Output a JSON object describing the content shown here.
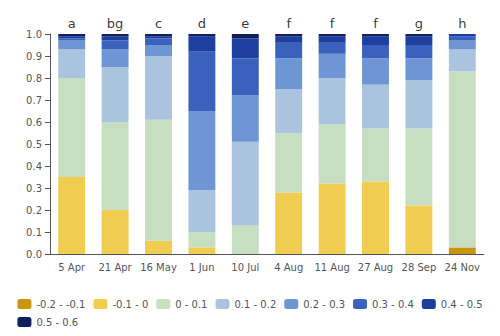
{
  "chart_data": {
    "type": "bar",
    "stacked": true,
    "categories": [
      "5 Apr",
      "21 Apr",
      "16 May",
      "1 Jun",
      "10 Jul",
      "4 Aug",
      "11 Aug",
      "27 Aug",
      "28 Sep",
      "24 Nov"
    ],
    "annotations": [
      "a",
      "bg",
      "c",
      "d",
      "e",
      "f",
      "f",
      "f",
      "g",
      "h"
    ],
    "series": [
      {
        "name": "-0.2 - -0.1",
        "color": "#c8960c",
        "values": [
          0.0,
          0.0,
          0.0,
          0.0,
          0.0,
          0.0,
          0.0,
          0.0,
          0.0,
          0.03
        ]
      },
      {
        "name": "-0.1 - 0",
        "color": "#f0cc50",
        "values": [
          0.35,
          0.2,
          0.06,
          0.03,
          0.0,
          0.28,
          0.32,
          0.33,
          0.22,
          0.0
        ]
      },
      {
        "name": "0 - 0.1",
        "color": "#c5dfc0",
        "values": [
          0.45,
          0.4,
          0.55,
          0.07,
          0.13,
          0.27,
          0.27,
          0.24,
          0.35,
          0.8
        ]
      },
      {
        "name": "0.1 - 0.2",
        "color": "#aac4e0",
        "values": [
          0.13,
          0.25,
          0.29,
          0.19,
          0.38,
          0.2,
          0.21,
          0.2,
          0.22,
          0.1
        ]
      },
      {
        "name": "0.2 - 0.3",
        "color": "#6e96d4",
        "values": [
          0.04,
          0.08,
          0.05,
          0.36,
          0.21,
          0.14,
          0.11,
          0.12,
          0.1,
          0.04
        ]
      },
      {
        "name": "0.3 - 0.4",
        "color": "#3a62bc",
        "values": [
          0.01,
          0.04,
          0.03,
          0.27,
          0.17,
          0.07,
          0.05,
          0.06,
          0.06,
          0.02
        ]
      },
      {
        "name": "0.4 - 0.5",
        "color": "#1e3ea0",
        "values": [
          0.01,
          0.02,
          0.01,
          0.07,
          0.09,
          0.03,
          0.03,
          0.04,
          0.04,
          0.01
        ]
      },
      {
        "name": "0.5 - 0.6",
        "color": "#0e2060",
        "values": [
          0.01,
          0.01,
          0.01,
          0.01,
          0.02,
          0.01,
          0.01,
          0.01,
          0.01,
          0.0
        ]
      }
    ],
    "ylim": [
      0,
      1.0
    ],
    "yticks": [
      {
        "value": 0,
        "label": "0.0"
      },
      0.1,
      0.2,
      0.3,
      0.4,
      0.5,
      0.6,
      0.7,
      0.8,
      0.9,
      {
        "value": 1.0,
        "label": "1.0"
      }
    ],
    "grid": false,
    "legend": "bottom"
  }
}
